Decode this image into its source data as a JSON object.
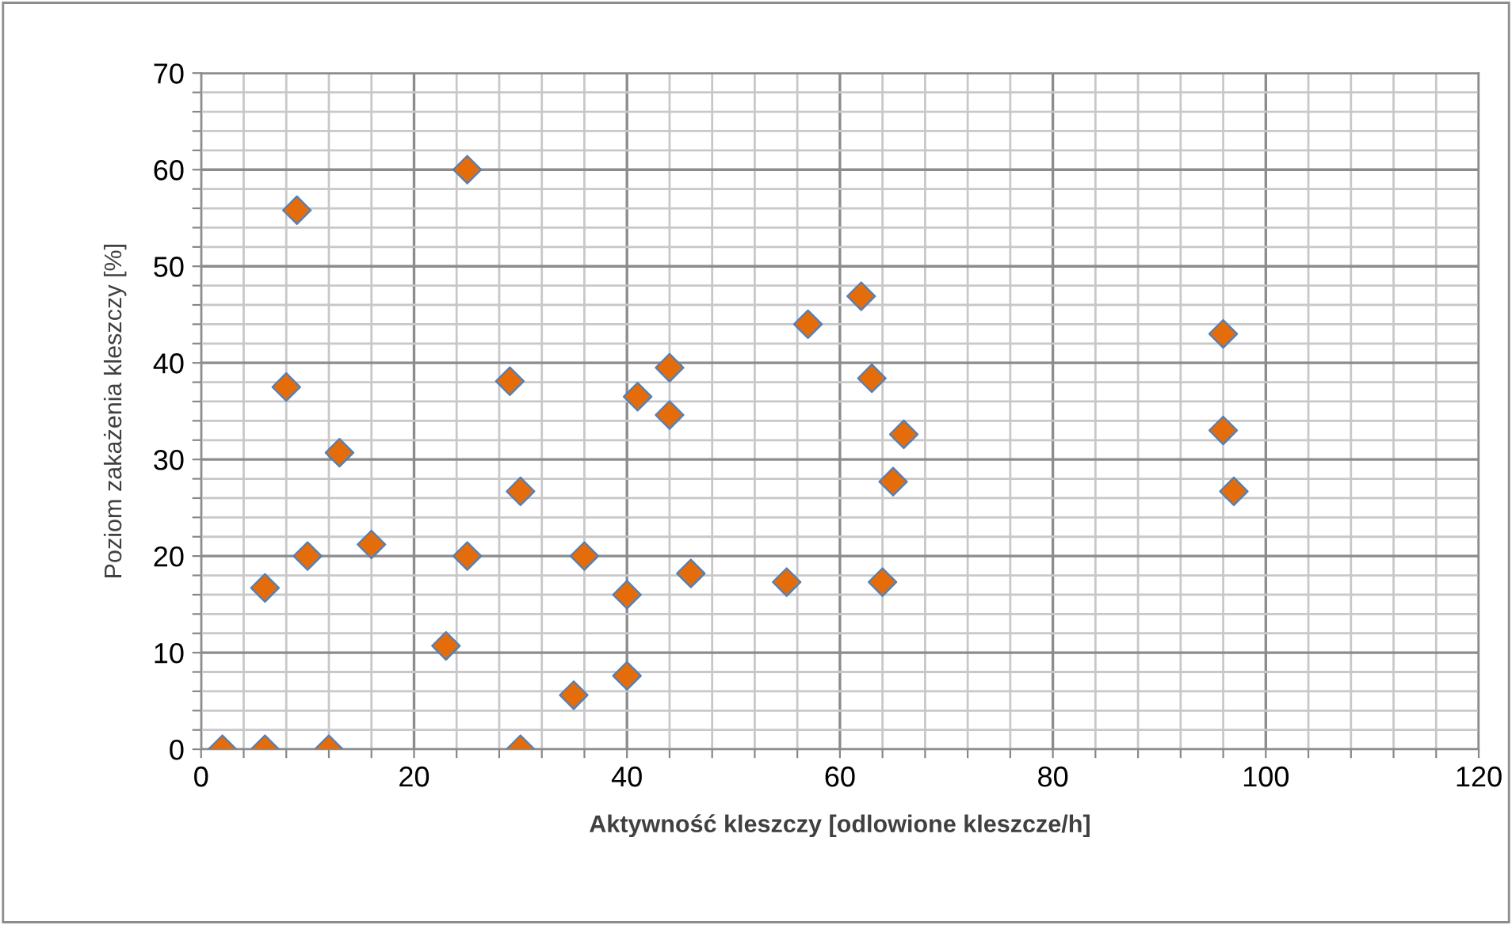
{
  "chart_data": {
    "type": "scatter",
    "xlabel": "Aktywność kleszczy [odlowione kleszcze/h]",
    "ylabel": "Poziom zakażenia kleszczy [%]",
    "xlim": [
      0,
      120
    ],
    "ylim": [
      0,
      70
    ],
    "xticks": [
      0,
      {
        "value": 4,
        "label": null
      },
      {
        "value": 8,
        "label": null
      },
      {
        "value": 12,
        "label": null
      },
      {
        "value": 16,
        "label": null
      },
      20,
      {
        "value": 24,
        "label": null
      },
      {
        "value": 28,
        "label": null
      },
      {
        "value": 32,
        "label": null
      },
      {
        "value": 36,
        "label": null
      },
      40,
      {
        "value": 44,
        "label": null
      },
      {
        "value": 48,
        "label": null
      },
      {
        "value": 52,
        "label": null
      },
      {
        "value": 56,
        "label": null
      },
      60,
      {
        "value": 64,
        "label": null
      },
      {
        "value": 68,
        "label": null
      },
      {
        "value": 72,
        "label": null
      },
      {
        "value": 76,
        "label": null
      },
      80,
      {
        "value": 84,
        "label": null
      },
      {
        "value": 88,
        "label": null
      },
      {
        "value": 92,
        "label": null
      },
      {
        "value": 96,
        "label": null
      },
      100,
      {
        "value": 104,
        "label": null
      },
      {
        "value": 108,
        "label": null
      },
      {
        "value": 112,
        "label": null
      },
      {
        "value": 116,
        "label": null
      },
      120
    ],
    "yticks": [
      0,
      {
        "value": 2,
        "label": null
      },
      {
        "value": 4,
        "label": null
      },
      {
        "value": 6,
        "label": null
      },
      {
        "value": 8,
        "label": null
      },
      10,
      {
        "value": 12,
        "label": null
      },
      {
        "value": 14,
        "label": null
      },
      {
        "value": 16,
        "label": null
      },
      {
        "value": 18,
        "label": null
      },
      20,
      {
        "value": 22,
        "label": null
      },
      {
        "value": 24,
        "label": null
      },
      {
        "value": 26,
        "label": null
      },
      {
        "value": 28,
        "label": null
      },
      30,
      {
        "value": 32,
        "label": null
      },
      {
        "value": 34,
        "label": null
      },
      {
        "value": 36,
        "label": null
      },
      {
        "value": 38,
        "label": null
      },
      40,
      {
        "value": 42,
        "label": null
      },
      {
        "value": 44,
        "label": null
      },
      {
        "value": 46,
        "label": null
      },
      {
        "value": 48,
        "label": null
      },
      50,
      {
        "value": 52,
        "label": null
      },
      {
        "value": 54,
        "label": null
      },
      {
        "value": 56,
        "label": null
      },
      {
        "value": 58,
        "label": null
      },
      60,
      {
        "value": 62,
        "label": null
      },
      {
        "value": 64,
        "label": null
      },
      {
        "value": 66,
        "label": null
      },
      {
        "value": 68,
        "label": null
      },
      70
    ],
    "grid": true,
    "marker": "diamond",
    "series": [
      {
        "color": "#e46c0a",
        "x": [
          2,
          6,
          12,
          30,
          9,
          25,
          8,
          13,
          6,
          10,
          16,
          23,
          25,
          29,
          30,
          36,
          40,
          40,
          35,
          41,
          44,
          44,
          46,
          55,
          57,
          62,
          63,
          66,
          65,
          64,
          96,
          96,
          97
        ],
        "values": [
          0,
          0,
          0,
          0,
          55.8,
          60,
          37.5,
          30.7,
          16.7,
          20,
          21.2,
          10.7,
          20,
          38.1,
          26.7,
          20,
          16,
          7.6,
          5.6,
          36.5,
          39.5,
          34.6,
          18.2,
          17.3,
          44,
          46.9,
          38.4,
          32.6,
          27.7,
          17.3,
          43,
          33,
          26.7
        ]
      }
    ]
  }
}
